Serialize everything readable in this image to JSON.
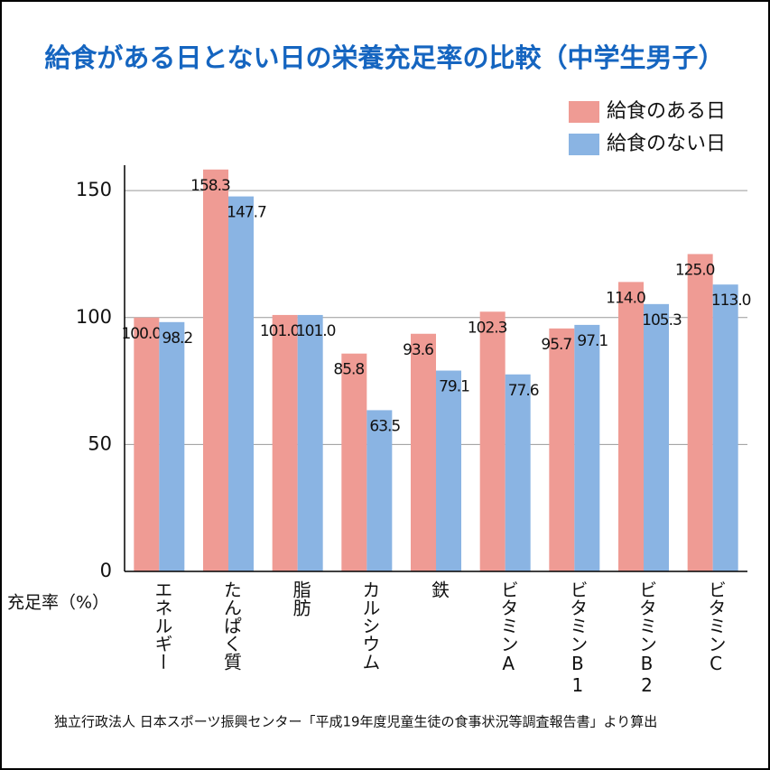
{
  "chart_data": {
    "type": "bar",
    "title": "給食がある日とない日の栄養充足率の比較（中学生男子）",
    "y_axis_label": "充足率（%）",
    "source": "独立行政法人 日本スポーツ振興センター「平成19年度児童生徒の食事状況等調査報告書」より算出",
    "categories": [
      "エネルギー",
      "たんぱく質",
      "脂肪",
      "カルシウム",
      "鉄",
      "ビタミンA",
      "ビタミンB1",
      "ビタミンB2",
      "ビタミンC"
    ],
    "series": [
      {
        "name": "給食のある日",
        "color": "#ef9b94",
        "values": [
          100,
          158.3,
          101,
          85.8,
          93.6,
          102.3,
          95.7,
          114,
          125
        ],
        "value_labels": [
          "100.0",
          "158.3",
          "101.0",
          "85.8",
          "93.6",
          "102.3",
          "95.7",
          "114.0",
          "125.0"
        ]
      },
      {
        "name": "給食のない日",
        "color": "#8ab4e3",
        "values": [
          98.2,
          147.7,
          101,
          63.5,
          79.1,
          77.6,
          97.1,
          105.3,
          113
        ],
        "value_labels": [
          "98.2",
          "147.7",
          "101.0",
          "63.5",
          "79.1",
          "77.6",
          "97.1",
          "105.3",
          "113.0"
        ]
      }
    ],
    "ylim": [
      0,
      160
    ],
    "yticks": [
      0,
      50,
      100,
      150
    ],
    "grid": true,
    "legend": "top-right"
  }
}
